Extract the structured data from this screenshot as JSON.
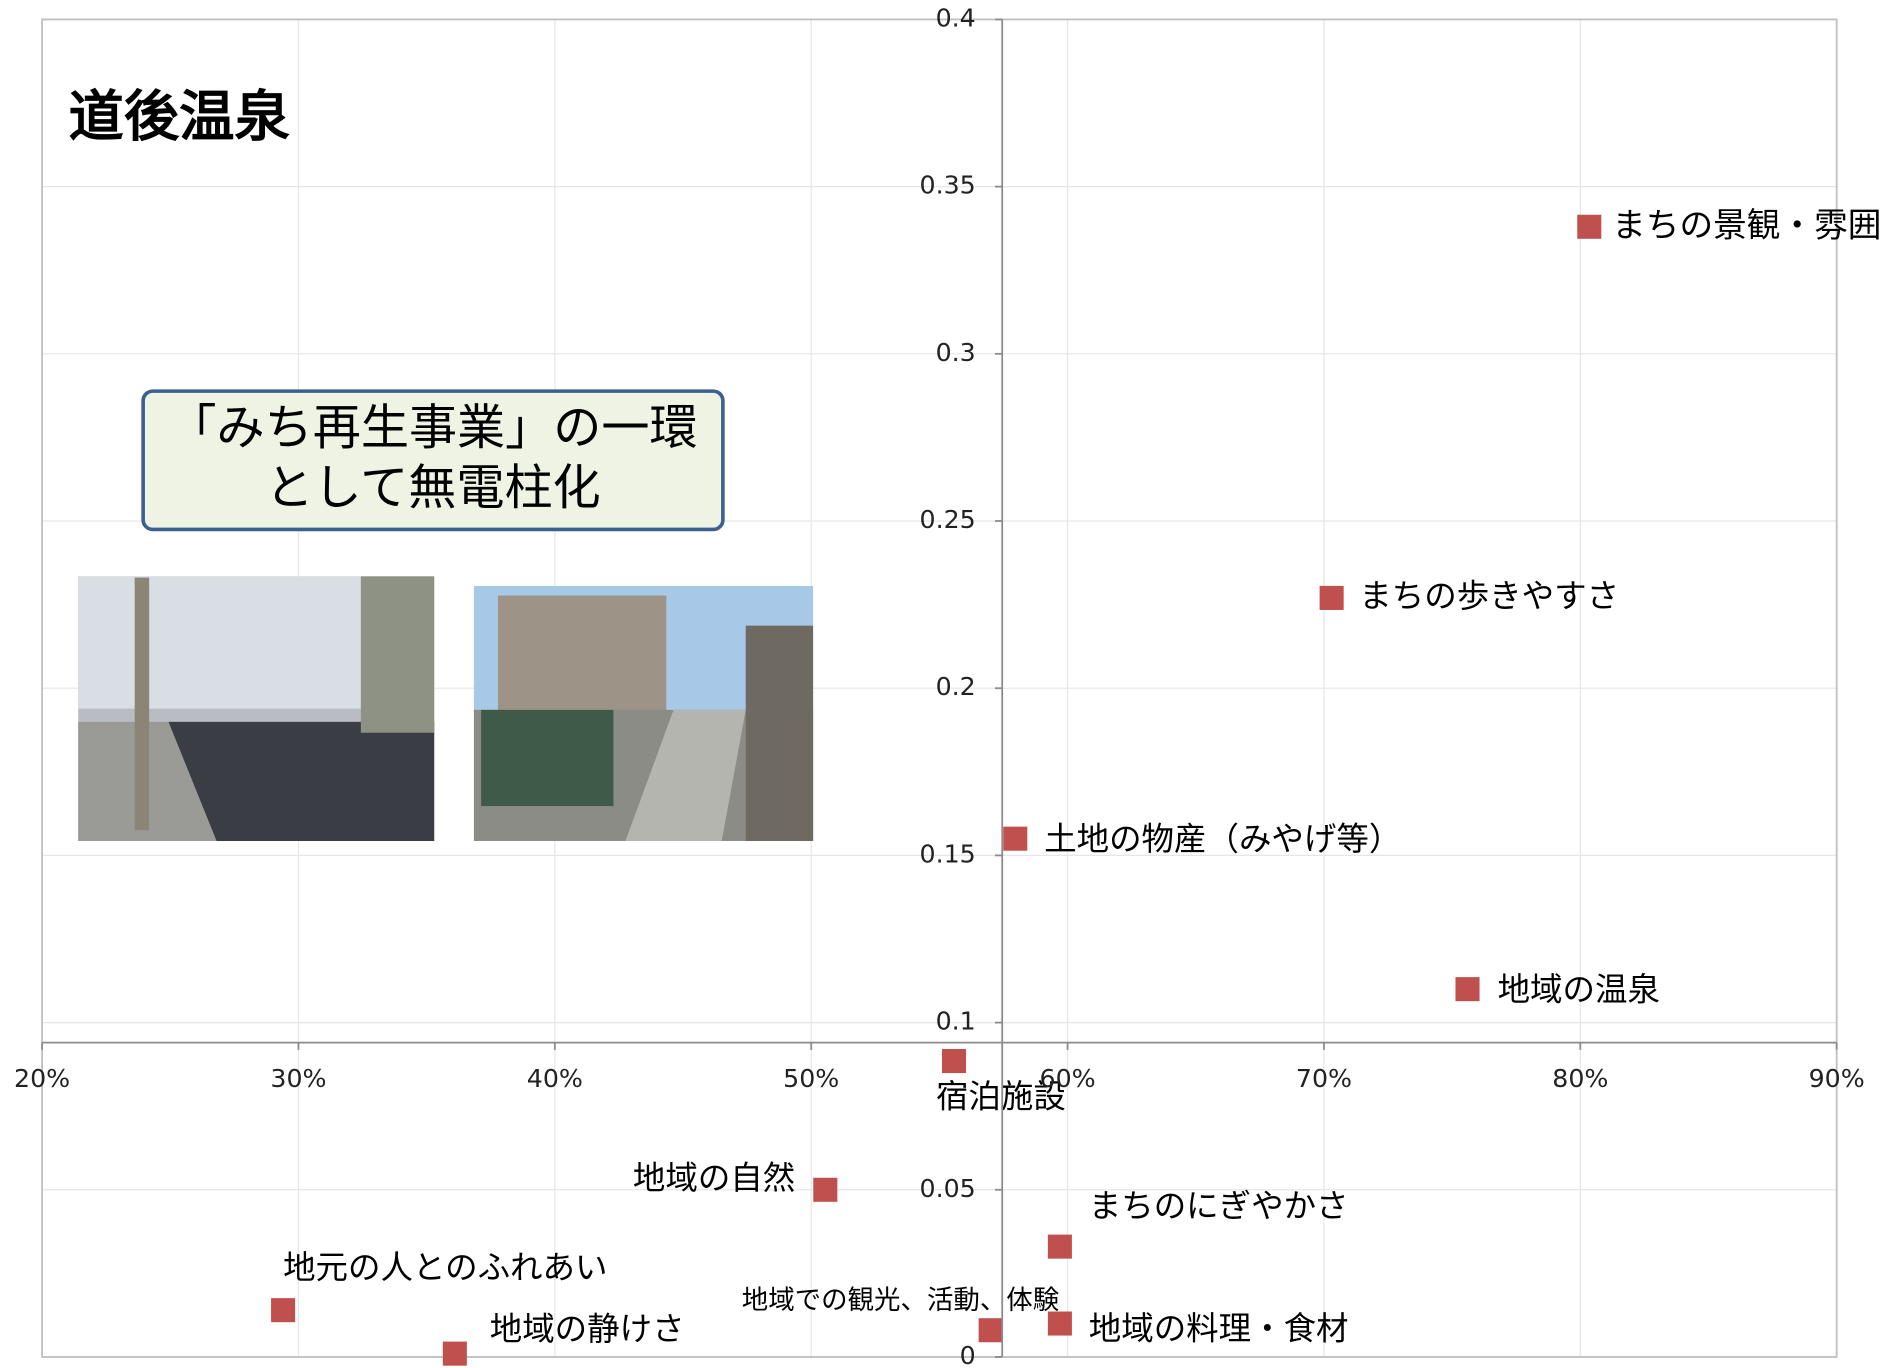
{
  "chart_data": {
    "type": "scatter",
    "title": "道後温泉",
    "annotation": [
      "「みち再生事業」の一環",
      "として無電柱化"
    ],
    "labels": [
      "まちの景観・雰囲",
      "まちの歩きやすさ",
      "土地の物産（みやげ等）",
      "地域の温泉",
      "宿泊施設",
      "地域の自然",
      "まちのにぎやかさ",
      "地元の人とのふれあい",
      "地域の静けさ",
      "地域での観光、活動、体験",
      "地域の料理・食材"
    ],
    "x": [
      80.35,
      70.3,
      57.96,
      75.6,
      55.57,
      50.55,
      59.7,
      29.4,
      36.1,
      57.0,
      59.7
    ],
    "values": [
      0.338,
      0.227,
      0.155,
      0.11,
      0.0885,
      0.05,
      0.033,
      0.014,
      0.001,
      0.008,
      0.01
    ],
    "color": "#c0504d",
    "highlight_color": "#ff0000",
    "highlight_index": 0,
    "xlim": [
      20,
      90
    ],
    "xticks": [
      {
        "value": 20,
        "label": "20%"
      },
      {
        "value": 30,
        "label": "30%"
      },
      {
        "value": 40,
        "label": "40%"
      },
      {
        "value": 50,
        "label": "50%"
      },
      {
        "value": 60,
        "label": "60%"
      },
      {
        "value": 70,
        "label": "70%"
      },
      {
        "value": 80,
        "label": "80%"
      },
      {
        "value": 90,
        "label": "90%"
      }
    ],
    "ylim": [
      0,
      0.4
    ],
    "yticks": [
      0,
      0.05,
      0.1,
      0.15,
      0.2,
      0.25,
      0.3,
      0.35,
      0.4
    ],
    "x_axis_crosses_y": 0.094,
    "y_axis_crosses_x": 57.45,
    "grid": true
  }
}
